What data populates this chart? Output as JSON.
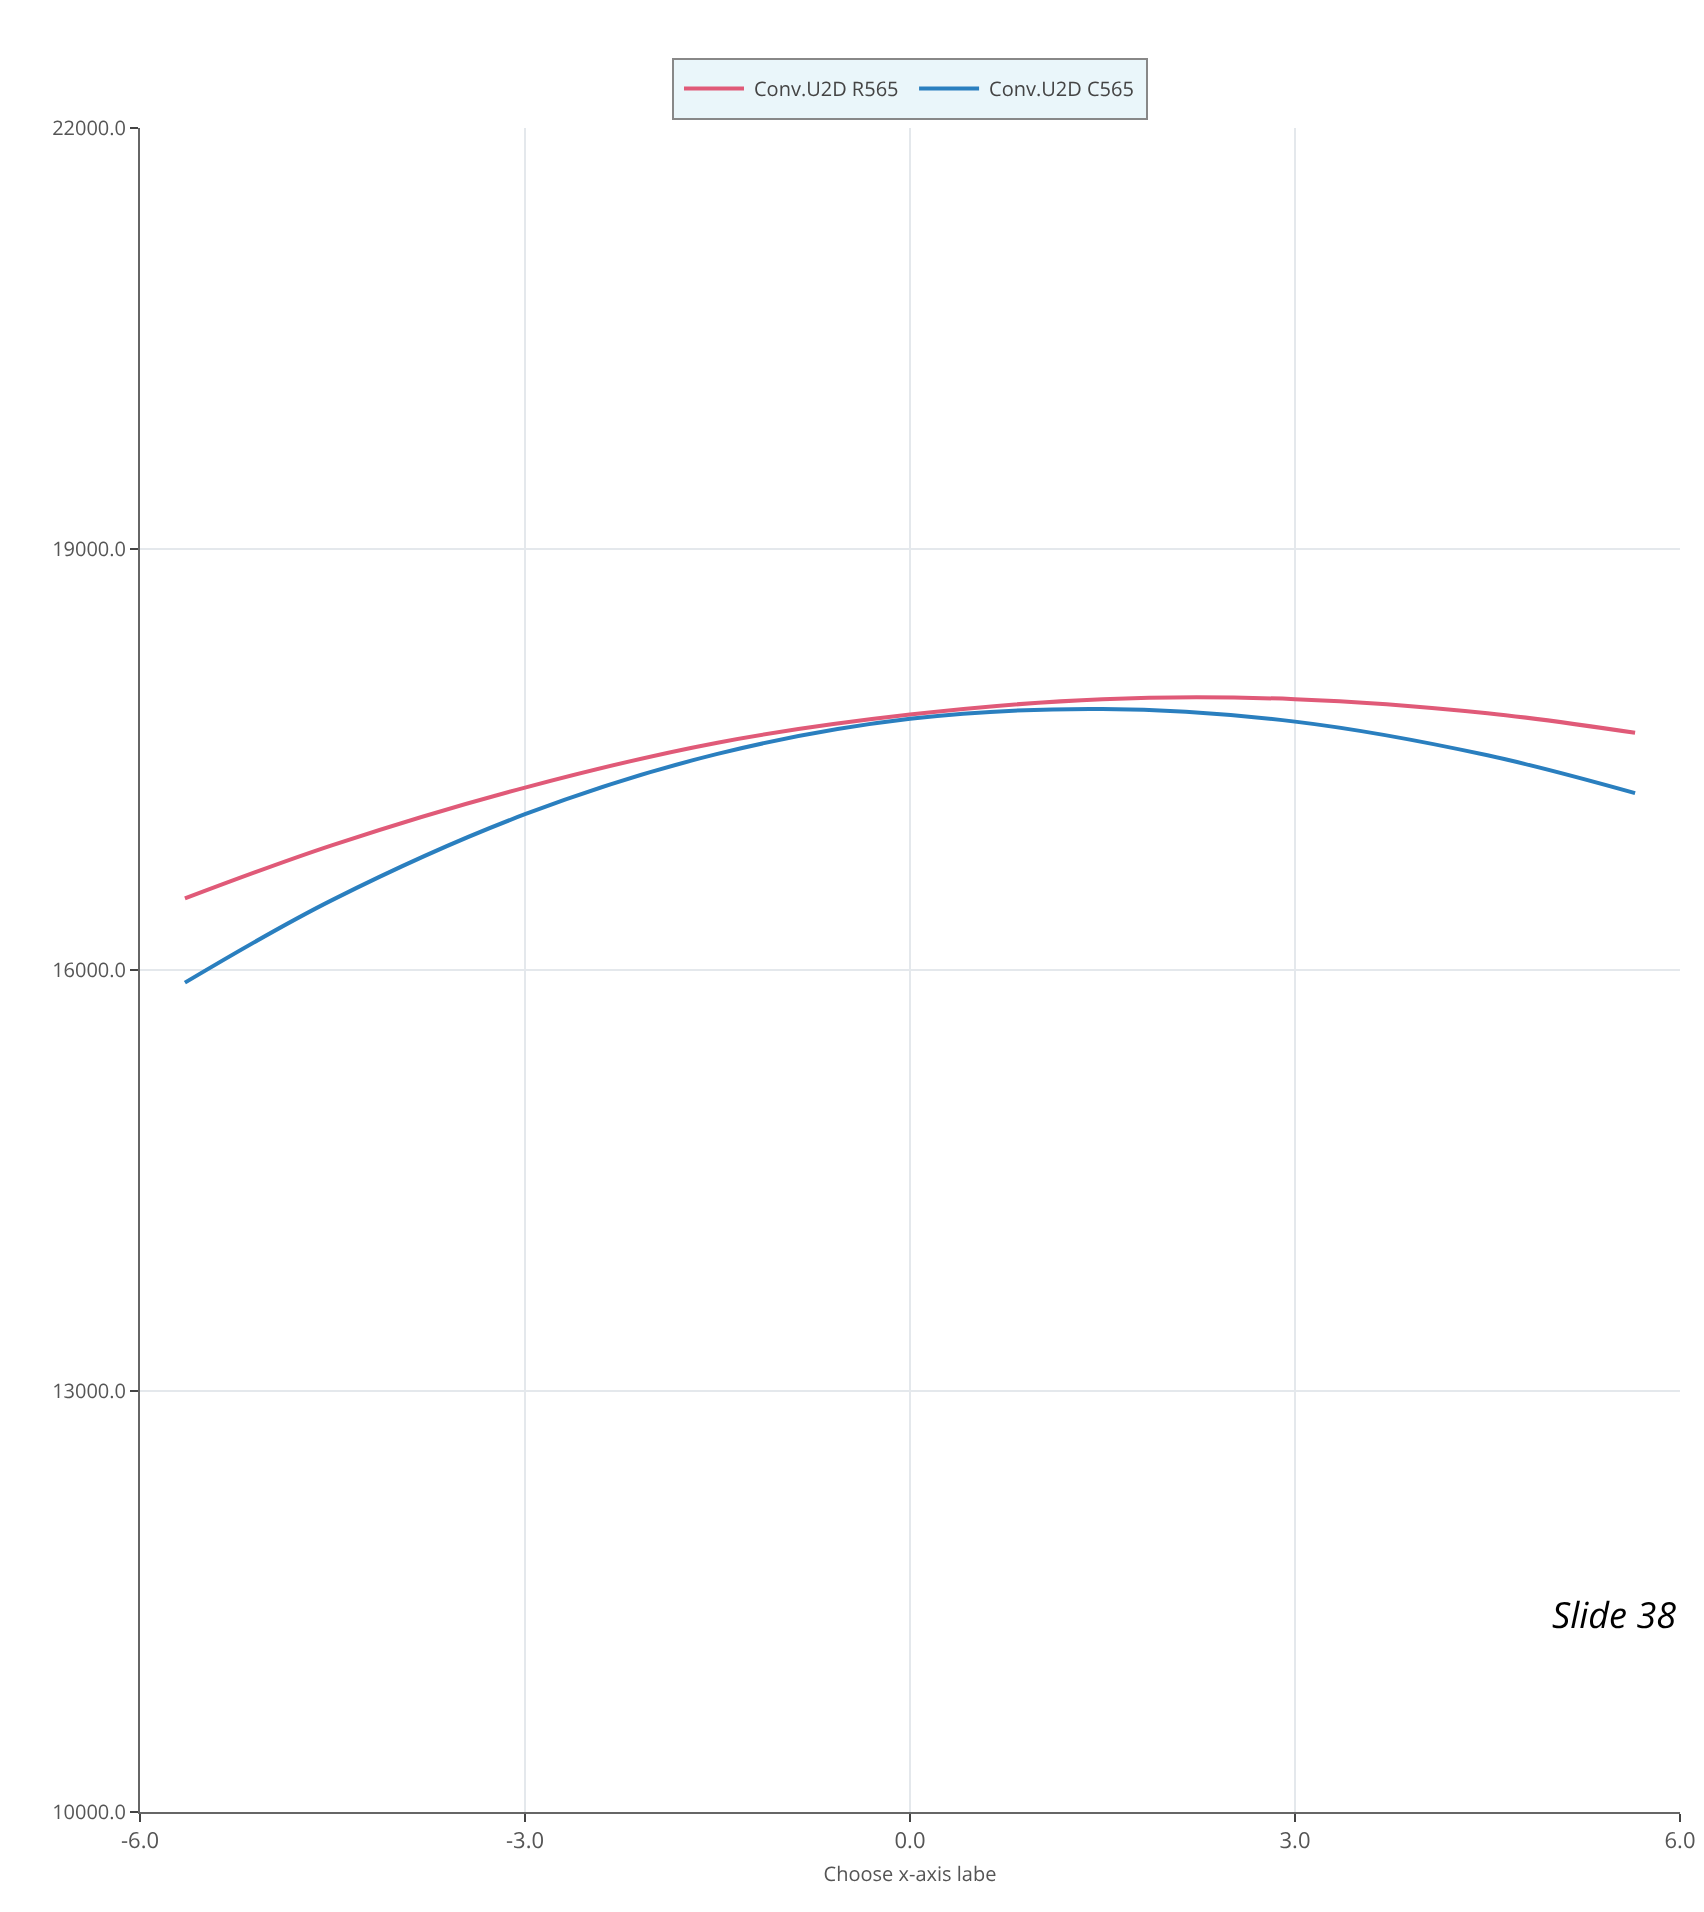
{
  "chart_data": {
    "type": "line",
    "xlabel": "Choose x-axis labe",
    "x": [
      -5.65,
      -4.5,
      -3,
      -1.5,
      0,
      1.5,
      3,
      4.5,
      5.65
    ],
    "series": [
      {
        "name": "Conv.U2D R565",
        "color": "#e05a78",
        "values": [
          16510,
          16890,
          17300,
          17620,
          17820,
          17930,
          17930,
          17830,
          17690
        ]
      },
      {
        "name": "Conv.U2D C565",
        "color": "#2a7fbf",
        "values": [
          15910,
          16500,
          17110,
          17540,
          17790,
          17860,
          17770,
          17530,
          17260
        ]
      }
    ],
    "xlim": [
      -6,
      6
    ],
    "xticks": [
      {
        "value": -6,
        "label": "-6.0"
      },
      {
        "value": -3,
        "label": "-3.0"
      },
      {
        "value": 0,
        "label": "0.0"
      },
      {
        "value": 3,
        "label": "3.0"
      },
      {
        "value": 6,
        "label": "6.0"
      }
    ],
    "ylim": [
      10000,
      22000
    ],
    "yticks": [
      {
        "value": 10000,
        "label": "10000.0"
      },
      {
        "value": 13000,
        "label": "13000.0"
      },
      {
        "value": 16000,
        "label": "16000.0"
      },
      {
        "value": 19000,
        "label": "19000.0"
      },
      {
        "value": 22000,
        "label": "22000.0"
      }
    ],
    "grid": true,
    "legend": "top",
    "marker": "none",
    "line_style": "solid",
    "annotations": [
      "Slide 38"
    ]
  }
}
